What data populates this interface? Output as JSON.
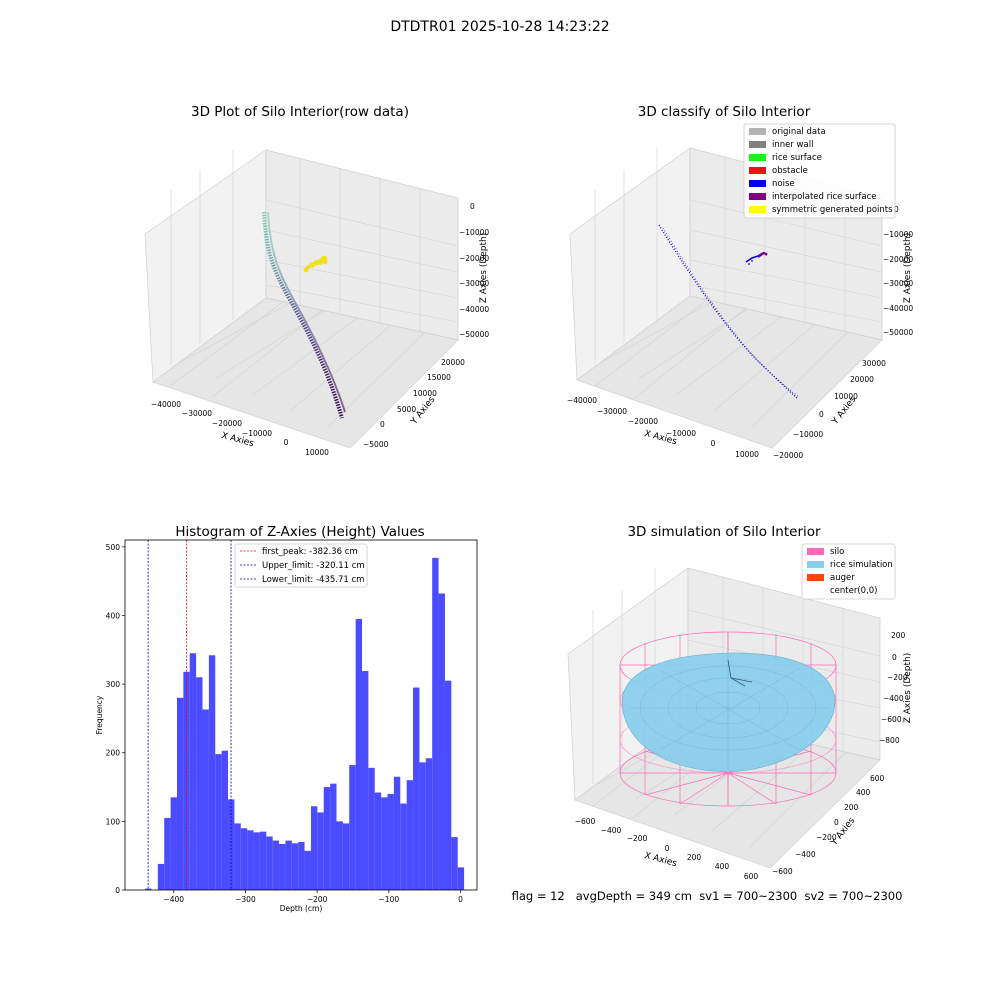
{
  "suptitle": "DTDTR01 2025-10-28 14:23:22",
  "chart_data": [
    {
      "type": "scatter",
      "title": "3D Plot of Silo Interior(row data)",
      "xlabel": "X Axies",
      "ylabel": "Y Axies",
      "zlabel": "Z Axies (Depth)",
      "xticks": [
        "−40000",
        "−30000",
        "−20000",
        "−10000",
        "0",
        "10000"
      ],
      "yticks": [
        "−5000",
        "0",
        "5000",
        "10000",
        "15000",
        "20000"
      ],
      "zticks": [
        "0",
        "−10000",
        "−20000",
        "−30000",
        "−40000",
        "−50000"
      ],
      "xlim": [
        -43000,
        15000
      ],
      "ylim": [
        -7000,
        23000
      ],
      "zlim": [
        -53000,
        2000
      ],
      "grid": true,
      "series": [
        {
          "color_start": "#7fd0b4",
          "color_end": "#3e0a56",
          "points": [
            [
              -33000,
              21000,
              -1000
            ],
            [
              -30000,
              17500,
              -8000
            ],
            [
              -26000,
              13500,
              -16000
            ],
            [
              -21000,
              9500,
              -24000
            ],
            [
              -15000,
              6000,
              -32000
            ],
            [
              -9000,
              3000,
              -40000
            ],
            [
              -2000,
              0,
              -49000
            ]
          ]
        },
        {
          "color": "#f0e020",
          "points": [
            [
              -3500,
              -1500,
              -15500
            ],
            [
              -2500,
              -1000,
              -15000
            ],
            [
              -1500,
              -500,
              -14500
            ],
            [
              -500,
              0,
              -14200
            ],
            [
              500,
              500,
              -13900
            ],
            [
              1000,
              800,
              -13700
            ]
          ]
        }
      ]
    },
    {
      "type": "scatter",
      "title": "3D classify of Silo Interior",
      "xlabel": "X Axies",
      "ylabel": "Y Axies",
      "zlabel": "Z Axies (Depth)",
      "xticks": [
        "−40000",
        "−30000",
        "−20000",
        "−10000",
        "0",
        "10000"
      ],
      "yticks": [
        "−20000",
        "−10000",
        "0",
        "10000",
        "20000",
        "30000"
      ],
      "zticks": [
        "0",
        "−10000",
        "−20000",
        "−30000",
        "−40000",
        "−50000"
      ],
      "grid": true,
      "legend": {
        "placement": "top-right",
        "entries": [
          {
            "label": "original data",
            "color": "#b3b3b3"
          },
          {
            "label": "inner wall",
            "color": "#808080"
          },
          {
            "label": "rice surface",
            "color": "#22ee11"
          },
          {
            "label": "obstacle",
            "color": "#ee1111"
          },
          {
            "label": "noise",
            "color": "#0000ee"
          },
          {
            "label": "interpolated rice surface",
            "color": "#800080"
          },
          {
            "label": "symmetric generated points",
            "color": "#ffff00"
          }
        ]
      },
      "series": [
        {
          "name": "noise",
          "color": "#0000ee",
          "points": [
            [
              -38000,
              30000,
              2000
            ],
            [
              -28000,
              20000,
              -12000
            ],
            [
              -15000,
              9000,
              -25000
            ],
            [
              -4000,
              -3000,
              -38000
            ],
            [
              4000,
              -12000,
              -48000
            ],
            [
              10000,
              -19000,
              -55000
            ]
          ]
        },
        {
          "name": "interpolated rice surface",
          "color": "#800080",
          "points": [
            [
              -4000,
              -2500,
              -15000
            ],
            [
              -2000,
              -1000,
              -13500
            ],
            [
              0,
              500,
              -13000
            ],
            [
              1500,
              1500,
              -13200
            ]
          ]
        }
      ]
    },
    {
      "type": "bar",
      "title": "Histogram of Z-Axies (Height) Values",
      "xlabel": "Depth (cm)",
      "ylabel": "Frequency",
      "xlim": [
        -468,
        23
      ],
      "ylim": [
        0,
        510
      ],
      "xticks": [
        -400,
        -300,
        -200,
        -100,
        0
      ],
      "yticks": [
        0,
        100,
        200,
        300,
        400,
        500
      ],
      "bar_color": "#4b4bff",
      "bin_start": -440,
      "bin_width": 8.9,
      "values": [
        2,
        0,
        38,
        105,
        135,
        280,
        318,
        345,
        310,
        263,
        342,
        198,
        203,
        132,
        97,
        90,
        87,
        84,
        85,
        78,
        72,
        67,
        72,
        68,
        70,
        57,
        122,
        113,
        150,
        155,
        100,
        97,
        182,
        395,
        319,
        178,
        142,
        135,
        140,
        165,
        126,
        160,
        295,
        186,
        192,
        484,
        432,
        305,
        77,
        33
      ],
      "vlines": [
        {
          "label": "first_peak: -382.36 cm",
          "x": -382.36,
          "color": "#ff0000"
        },
        {
          "label": "Upper_limit: -320.11 cm",
          "x": -320.11,
          "color": "#0000bb"
        },
        {
          "label": "Lower_limit: -435.71 cm",
          "x": -435.71,
          "color": "#0000bb"
        }
      ],
      "legend": {
        "placement": "top-center"
      }
    },
    {
      "type": "scatter",
      "title": "3D simulation of Silo Interior",
      "xlabel": "X Axies",
      "ylabel": "Y Axies",
      "zlabel": "Z Axies (Depth)",
      "xticks": [
        "−600",
        "−400",
        "−200",
        "0",
        "200",
        "400",
        "600"
      ],
      "yticks": [
        "−600",
        "−400",
        "−200",
        "0",
        "200",
        "400",
        "600"
      ],
      "zticks": [
        "200",
        "0",
        "−200",
        "−400",
        "−600",
        "−800"
      ],
      "grid": true,
      "legend": {
        "placement": "top-right",
        "entries": [
          {
            "label": "silo",
            "color": "#ff69b4"
          },
          {
            "label": "rice simulation",
            "color": "#87ceeb"
          },
          {
            "label": "auger",
            "color": "#ff4500"
          },
          {
            "label": "center(0,0)",
            "color": ""
          }
        ]
      }
    }
  ],
  "footer": "flag = 12   avgDepth = 349 cm  sv1 = 700~2300  sv2 = 700~2300"
}
